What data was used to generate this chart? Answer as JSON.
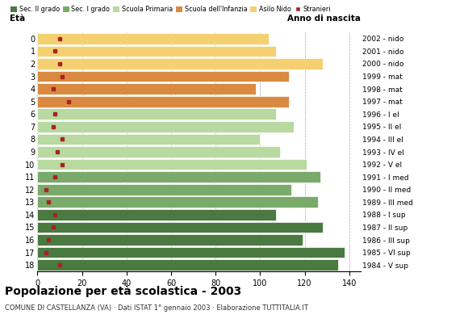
{
  "ages": [
    0,
    1,
    2,
    3,
    4,
    5,
    6,
    7,
    8,
    9,
    10,
    11,
    12,
    13,
    14,
    15,
    16,
    17,
    18
  ],
  "values": [
    104,
    107,
    128,
    113,
    98,
    113,
    107,
    115,
    100,
    109,
    121,
    127,
    114,
    126,
    107,
    128,
    119,
    138,
    135
  ],
  "stranieri": [
    10,
    8,
    10,
    11,
    7,
    14,
    8,
    7,
    11,
    9,
    11,
    8,
    4,
    5,
    8,
    7,
    5,
    4,
    10
  ],
  "anno_labels": [
    "2002 - nido",
    "2001 - nido",
    "2000 - nido",
    "1999 - mat",
    "1998 - mat",
    "1997 - mat",
    "1996 - I el",
    "1995 - II el",
    "1994 - III el",
    "1993 - IV el",
    "1992 - V el",
    "1991 - I med",
    "1990 - II med",
    "1989 - III med",
    "1988 - I sup",
    "1987 - II sup",
    "1986 - III sup",
    "1985 - VI sup",
    "1984 - V sup"
  ],
  "bar_colors": [
    "#f5d070",
    "#f5d070",
    "#f5d070",
    "#d98a40",
    "#d98a40",
    "#d98a40",
    "#b8d9a0",
    "#b8d9a0",
    "#b8d9a0",
    "#b8d9a0",
    "#b8d9a0",
    "#7aaa6a",
    "#7aaa6a",
    "#7aaa6a",
    "#4a7a40",
    "#4a7a40",
    "#4a7a40",
    "#4a7a40",
    "#4a7a40"
  ],
  "colors": {
    "sec2": "#4a7a40",
    "sec1": "#7aaa6a",
    "primaria": "#b8d9a0",
    "infanzia": "#d98a40",
    "nido": "#f5d070"
  },
  "stranieri_color": "#aa2222",
  "title": "Popolazione per età scolastica - 2003",
  "subtitle": "COMUNE DI CASTELLANZA (VA) · Dati ISTAT 1° gennaio 2003 · Elaborazione TUTTITALIA.IT",
  "legend_labels": [
    "Sec. II grado",
    "Sec. I grado",
    "Scuola Primaria",
    "Scuola dell'Infanzia",
    "Asilo Nido",
    "Stranieri"
  ],
  "xlim": [
    0,
    145
  ],
  "xticks": [
    0,
    20,
    40,
    60,
    80,
    100,
    120,
    140
  ],
  "eta_label": "Età",
  "anno_label": "Anno di nascita"
}
